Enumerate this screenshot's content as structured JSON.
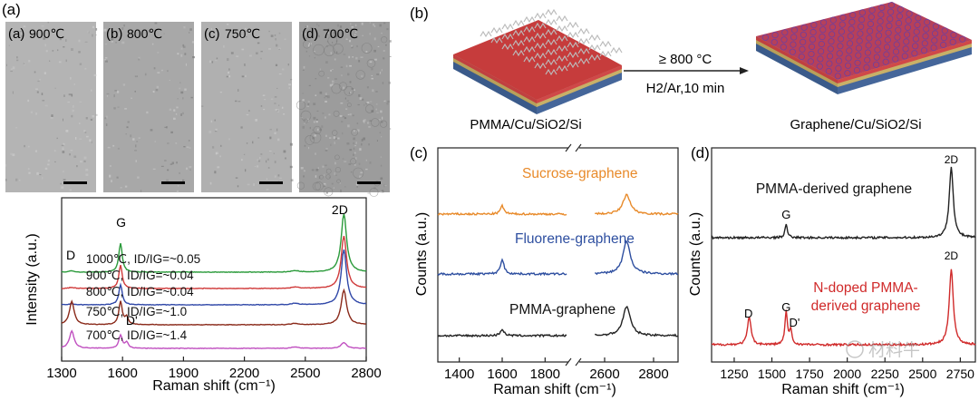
{
  "figure": {
    "panel_a": {
      "label": "(a)",
      "images": [
        {
          "sublabel": "(a)",
          "temp": "900℃"
        },
        {
          "sublabel": "(b)",
          "temp": "800℃"
        },
        {
          "sublabel": "(c)",
          "temp": "750℃"
        },
        {
          "sublabel": "(d)",
          "temp": "700℃"
        }
      ]
    },
    "panel_b": {
      "label": "(b)",
      "condition_top": "≥ 800 °C",
      "condition_bottom": "H2/Ar,10 min",
      "left_label": "PMMA/Cu/SiO2/Si",
      "right_label": "Graphene/Cu/SiO2/Si"
    },
    "panel_c": {
      "label": "(c)"
    },
    "panel_d": {
      "label": "(d)"
    },
    "watermark": "材料牛"
  },
  "chart_data": [
    {
      "id": "raman-temperature",
      "type": "line",
      "xlabel": "Raman shift (cm⁻¹)",
      "ylabel": "Intensity (a.u.)",
      "xlim": [
        1300,
        2800
      ],
      "xticks": [
        1300,
        1600,
        1900,
        2200,
        2500,
        2800
      ],
      "peaks": {
        "D": 1350,
        "G": 1590,
        "D'": 1620,
        "2D": 2690
      },
      "series": [
        {
          "name": "1000℃, ID/IG=~0.05",
          "color": "#2a9a3a",
          "offset": 4,
          "D": 0.05,
          "G": 1.0,
          "Dp": 0.0,
          "twoD": 2.0
        },
        {
          "name": "900℃, ID/IG=~0.04",
          "color": "#d03a3a",
          "offset": 3,
          "D": 0.04,
          "G": 0.8,
          "Dp": 0.0,
          "twoD": 1.8
        },
        {
          "name": "800℃, ID/IG=~0.04",
          "color": "#3048a8",
          "offset": 2,
          "D": 0.04,
          "G": 0.7,
          "Dp": 0.0,
          "twoD": 1.9
        },
        {
          "name": "750℃, ID/IG=~1.0",
          "color": "#8a2a1a",
          "offset": 1,
          "D": 0.8,
          "G": 0.8,
          "Dp": 0.25,
          "twoD": 1.2
        },
        {
          "name": "700℃, ID/IG=~1.4",
          "color": "#c050c0",
          "offset": 0,
          "D": 0.6,
          "G": 0.45,
          "Dp": 0.2,
          "twoD": 0.2
        }
      ],
      "peak_labels": [
        "D",
        "G",
        "D'",
        "2D"
      ]
    },
    {
      "id": "raman-precursors",
      "type": "line",
      "xlabel": "Raman shift (cm⁻¹)",
      "ylabel": "Counts (a.u.)",
      "x_segments": [
        [
          1300,
          1900
        ],
        [
          2500,
          2900
        ]
      ],
      "xticks": [
        1400,
        1600,
        1800,
        2600,
        2800
      ],
      "series": [
        {
          "name": "Sucrose-graphene",
          "color": "#e88a2a",
          "offset": 2,
          "G": 0.25,
          "twoD": 0.6
        },
        {
          "name": "Fluorene-graphene",
          "color": "#2e4fa0",
          "offset": 1,
          "G": 0.45,
          "twoD": 1.0
        },
        {
          "name": "PMMA-graphene",
          "color": "#222222",
          "offset": 0,
          "G": 0.2,
          "twoD": 0.9
        }
      ]
    },
    {
      "id": "raman-ndoped",
      "type": "line",
      "xlabel": "Raman shift (cm⁻¹)",
      "ylabel": "Counts (a.u.)",
      "xlim": [
        1100,
        2850
      ],
      "xticks": [
        1250,
        1500,
        1750,
        2000,
        2250,
        2500,
        2750
      ],
      "xtick_labels": [
        "1250",
        "1500",
        "1750",
        "2000",
        "2250",
        "2500",
        "2750"
      ],
      "series": [
        {
          "name": "PMMA-derived graphene",
          "color": "#222222",
          "offset": 1,
          "D": 0.0,
          "G": 0.25,
          "Dp": 0.0,
          "twoD": 1.4
        },
        {
          "name": "N-doped PMMA-derived graphene",
          "color": "#d02a2a",
          "offset": 0,
          "D": 0.55,
          "G": 0.65,
          "Dp": 0.3,
          "twoD": 1.5
        }
      ],
      "peak_labels": [
        "G",
        "2D",
        "D",
        "G",
        "D'",
        "2D"
      ]
    }
  ]
}
